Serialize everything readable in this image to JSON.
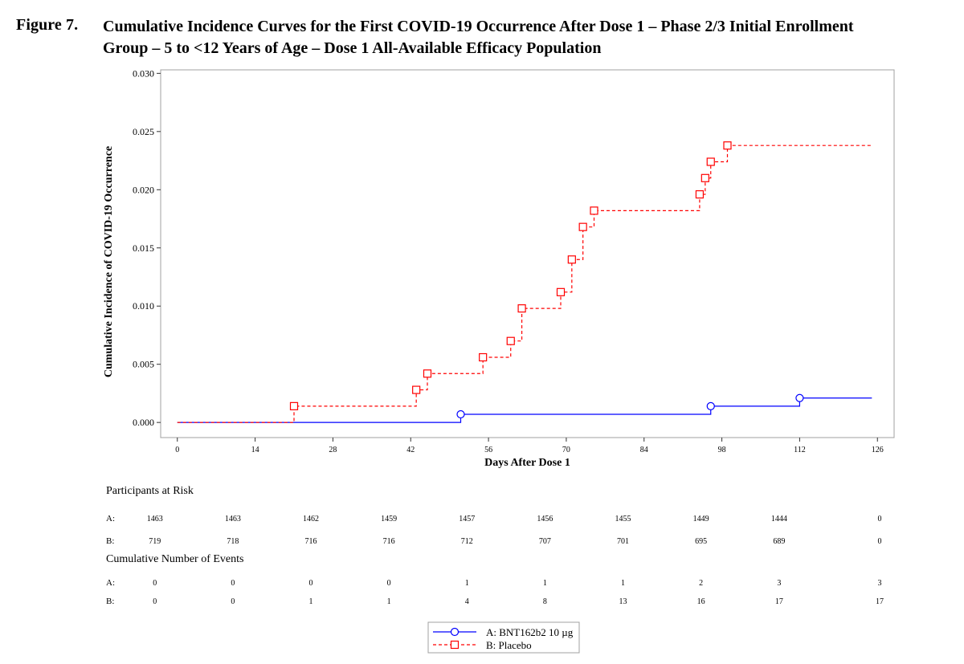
{
  "figure": {
    "number": "Figure 7.",
    "title_line1": "Cumulative Incidence Curves for the First COVID-19 Occurrence After Dose 1 – Phase 2/3 Initial Enrollment",
    "title_line2": "Group – 5 to <12 Years of Age – Dose 1 All-Available Efficacy Population"
  },
  "chart_data": {
    "type": "line",
    "step": true,
    "xlabel": "Days After Dose 1",
    "ylabel": "Cumulative Incidence of COVID-19 Occurrence",
    "xlim": [
      -3,
      129
    ],
    "ylim": [
      -0.0013,
      0.0303
    ],
    "x_ticks": [
      "0",
      "14",
      "28",
      "42",
      "56",
      "70",
      "84",
      "98",
      "112",
      "126"
    ],
    "y_ticks": [
      "0.000",
      "0.005",
      "0.010",
      "0.015",
      "0.020",
      "0.025",
      "0.030"
    ],
    "grid": false,
    "legend_position": "bottom-center",
    "series": [
      {
        "name": "A: BNT162b2 10 µg",
        "color": "#0000ff",
        "line_style": "solid",
        "marker": "circle",
        "x": [
          0,
          51,
          96,
          112,
          125
        ],
        "y": [
          0.0,
          0.0007,
          0.0014,
          0.0021,
          0.0021
        ],
        "marker_x": [
          51,
          96,
          112
        ],
        "marker_y": [
          0.0007,
          0.0014,
          0.0021
        ]
      },
      {
        "name": "B: Placebo",
        "color": "#ff0000",
        "line_style": "dashed",
        "marker": "square",
        "x": [
          0,
          21,
          43,
          45,
          55,
          60,
          62,
          69,
          71,
          73,
          75,
          94,
          95,
          96,
          99,
          125
        ],
        "y": [
          0.0,
          0.0014,
          0.0028,
          0.0042,
          0.0056,
          0.007,
          0.0098,
          0.0112,
          0.014,
          0.0168,
          0.0182,
          0.0196,
          0.021,
          0.0224,
          0.0238,
          0.0238
        ],
        "marker_x": [
          21,
          43,
          45,
          55,
          60,
          62,
          69,
          71,
          73,
          75,
          94,
          95,
          96,
          99
        ],
        "marker_y": [
          0.0014,
          0.0028,
          0.0042,
          0.0056,
          0.007,
          0.0098,
          0.0112,
          0.014,
          0.0168,
          0.0182,
          0.0196,
          0.021,
          0.0224,
          0.0238
        ]
      }
    ],
    "at_risk_table": {
      "title": "Participants at Risk",
      "rows": [
        {
          "label": "A:",
          "values": [
            "1463",
            "1463",
            "1462",
            "1459",
            "1457",
            "1456",
            "1455",
            "1449",
            "1444",
            "0"
          ]
        },
        {
          "label": "B:",
          "values": [
            "719",
            "718",
            "716",
            "716",
            "712",
            "707",
            "701",
            "695",
            "689",
            "0"
          ]
        }
      ]
    },
    "events_table": {
      "title": "Cumulative Number of Events",
      "rows": [
        {
          "label": "A:",
          "values": [
            "0",
            "0",
            "0",
            "0",
            "1",
            "1",
            "1",
            "2",
            "3",
            "3"
          ]
        },
        {
          "label": "B:",
          "values": [
            "0",
            "0",
            "1",
            "1",
            "4",
            "8",
            "13",
            "16",
            "17",
            "17"
          ]
        }
      ]
    }
  }
}
